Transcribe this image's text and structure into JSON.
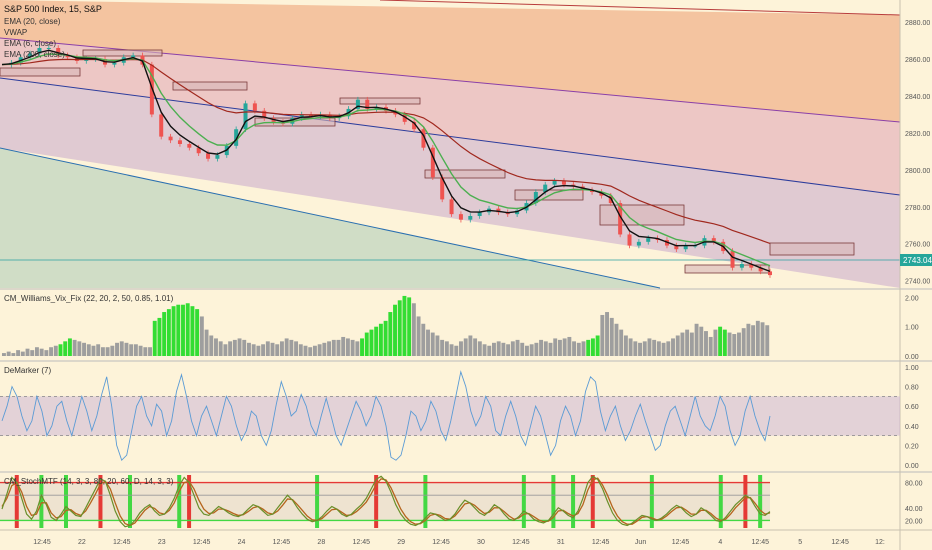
{
  "chart_data": {
    "type": "line",
    "title": "S&P 500 Index, 15, S&P",
    "price_badge": "2743.04",
    "overlays": [
      "EMA (20, close)",
      "VWAP",
      "EMA (6, close)",
      "EMA (200, close)"
    ],
    "price_ticks": [
      "2880.00",
      "2860.00",
      "2840.00",
      "2820.00",
      "2800.00",
      "2780.00",
      "2760.00",
      "2740.00"
    ],
    "price_ylim": [
      2736,
      2892
    ],
    "x_ticks": [
      "12:45",
      "22",
      "12:45",
      "23",
      "12:45",
      "24",
      "12:45",
      "28",
      "12:45",
      "29",
      "12:45",
      "30",
      "12:45",
      "31",
      "12:45",
      "Jun",
      "12:45",
      "4",
      "12:45",
      "5",
      "12:45",
      "12:"
    ],
    "price_series": [
      2857,
      2858,
      2861,
      2863,
      2866,
      2866,
      2862,
      2861,
      2859,
      2860,
      2860,
      2857,
      2858,
      2861,
      2862,
      2857,
      2830,
      2818,
      2816,
      2814,
      2812,
      2809,
      2806,
      2808,
      2813,
      2822,
      2836,
      2832,
      2828,
      2826,
      2825,
      2828,
      2830,
      2829,
      2830,
      2828,
      2829,
      2833,
      2838,
      2833,
      2834,
      2832,
      2830,
      2826,
      2822,
      2812,
      2796,
      2784,
      2776,
      2773,
      2775,
      2777,
      2779,
      2777,
      2776,
      2778,
      2782,
      2788,
      2792,
      2794,
      2792,
      2791,
      2789,
      2788,
      2786,
      2782,
      2765,
      2759,
      2761,
      2763,
      2762,
      2759,
      2757,
      2759,
      2759,
      2763,
      2761,
      2756,
      2747,
      2749,
      2747,
      2745,
      2743
    ],
    "panels": [
      {
        "name": "CM_Williams_Vix_Fix (22, 20, 2, 50, 0.85, 1.01)",
        "ticks": [
          "2.00",
          "1.00",
          "0.00"
        ],
        "ylim": [
          0,
          2.15
        ],
        "values": [
          0.1,
          0.15,
          0.1,
          0.2,
          0.15,
          0.25,
          0.2,
          0.3,
          0.25,
          0.2,
          0.3,
          0.35,
          0.4,
          0.5,
          0.6,
          0.55,
          0.5,
          0.45,
          0.4,
          0.35,
          0.4,
          0.3,
          0.3,
          0.35,
          0.45,
          0.5,
          0.45,
          0.4,
          0.4,
          0.35,
          0.3,
          0.3,
          1.2,
          1.3,
          1.5,
          1.6,
          1.7,
          1.75,
          1.75,
          1.8,
          1.7,
          1.6,
          1.35,
          0.9,
          0.7,
          0.6,
          0.5,
          0.4,
          0.5,
          0.55,
          0.6,
          0.55,
          0.45,
          0.4,
          0.35,
          0.4,
          0.5,
          0.45,
          0.4,
          0.5,
          0.6,
          0.55,
          0.5,
          0.4,
          0.35,
          0.3,
          0.35,
          0.4,
          0.45,
          0.5,
          0.55,
          0.55,
          0.65,
          0.6,
          0.55,
          0.5,
          0.6,
          0.8,
          0.9,
          1.0,
          1.1,
          1.2,
          1.5,
          1.75,
          1.9,
          2.05,
          2.0,
          1.8,
          1.35,
          1.1,
          0.9,
          0.8,
          0.7,
          0.55,
          0.5,
          0.4,
          0.35,
          0.5,
          0.6,
          0.7,
          0.6,
          0.5,
          0.4,
          0.35,
          0.45,
          0.5,
          0.45,
          0.4,
          0.5,
          0.55,
          0.45,
          0.35,
          0.4,
          0.45,
          0.55,
          0.5,
          0.45,
          0.6,
          0.55,
          0.6,
          0.65,
          0.5,
          0.45,
          0.5,
          0.55,
          0.6,
          0.7,
          1.4,
          1.5,
          1.3,
          1.1,
          0.9,
          0.7,
          0.6,
          0.5,
          0.45,
          0.5,
          0.6,
          0.55,
          0.5,
          0.45,
          0.5,
          0.6,
          0.7,
          0.8,
          0.9,
          0.8,
          1.1,
          1.0,
          0.85,
          0.65,
          0.9,
          1.0,
          0.9,
          0.8,
          0.75,
          0.8,
          0.95,
          1.1,
          1.05,
          1.2,
          1.15,
          1.05
        ],
        "highlights": [
          [
            12,
            14
          ],
          [
            32,
            41
          ],
          [
            76,
            86
          ],
          [
            124,
            126
          ],
          [
            152,
            153
          ]
        ]
      },
      {
        "name": "DeMarker (7)",
        "ticks": [
          "1.00",
          "0.80",
          "0.60",
          "0.40",
          "0.20",
          "0.00"
        ],
        "ylim": [
          -0.03,
          1.03
        ],
        "band": [
          0.3,
          0.7
        ],
        "values": [
          0.45,
          0.6,
          0.8,
          0.7,
          0.5,
          0.35,
          0.45,
          0.7,
          0.55,
          0.3,
          0.4,
          0.6,
          0.65,
          0.45,
          0.3,
          0.5,
          0.7,
          0.55,
          0.35,
          0.5,
          0.72,
          0.9,
          0.6,
          0.2,
          0.05,
          0.1,
          0.35,
          0.6,
          0.7,
          0.5,
          0.4,
          0.62,
          0.55,
          0.3,
          0.45,
          0.75,
          0.92,
          0.7,
          0.45,
          0.3,
          0.5,
          0.6,
          0.45,
          0.3,
          0.5,
          0.7,
          0.6,
          0.4,
          0.25,
          0.35,
          0.55,
          0.5,
          0.3,
          0.2,
          0.35,
          0.62,
          0.85,
          0.7,
          0.5,
          0.55,
          0.72,
          0.6,
          0.4,
          0.3,
          0.5,
          0.68,
          0.5,
          0.3,
          0.2,
          0.35,
          0.5,
          0.65,
          0.55,
          0.4,
          0.5,
          0.7,
          0.6,
          0.4,
          0.08,
          0.05,
          0.1,
          0.3,
          0.55,
          0.5,
          0.35,
          0.45,
          0.65,
          0.55,
          0.35,
          0.25,
          0.45,
          0.7,
          0.95,
          0.8,
          0.55,
          0.4,
          0.5,
          0.7,
          0.6,
          0.35,
          0.3,
          0.5,
          0.65,
          0.5,
          0.3,
          0.2,
          0.4,
          0.6,
          0.5,
          0.3,
          0.1,
          0.2,
          0.45,
          0.6,
          0.5,
          0.3,
          0.45,
          0.75,
          0.9,
          0.85,
          0.55,
          0.35,
          0.5,
          0.6,
          0.4,
          0.25,
          0.35,
          0.5,
          0.62,
          0.45,
          0.3,
          0.15,
          0.2,
          0.4,
          0.55,
          0.6,
          0.45,
          0.3,
          0.5,
          0.7,
          0.5,
          0.4,
          0.35,
          0.5,
          0.7,
          0.6,
          0.35,
          0.2,
          0.3,
          0.55,
          0.7,
          0.5,
          0.35,
          0.25,
          0.5
        ]
      },
      {
        "name": "CM_StochMTF (14, 3, 3, 80, 20, 60, D, 14, 3, 3)",
        "ticks": [
          "80.00",
          "40.00",
          "20.00"
        ],
        "ylim": [
          8,
          92
        ],
        "lines": [
          80,
          60,
          20
        ],
        "k_values": [
          38,
          62,
          88,
          80,
          55,
          30,
          22,
          35,
          60,
          45,
          25,
          20,
          30,
          42,
          35,
          28,
          26,
          40,
          55,
          70,
          86,
          82,
          60,
          35,
          18,
          10,
          12,
          20,
          32,
          40,
          45,
          35,
          28,
          30,
          40,
          55,
          75,
          88,
          80,
          60,
          40,
          30,
          28,
          35,
          42,
          38,
          32,
          28,
          26,
          30,
          38,
          45,
          42,
          35,
          28,
          30,
          40,
          50,
          60,
          52,
          40,
          30,
          22,
          18,
          20,
          26,
          35,
          42,
          38,
          30,
          26,
          30,
          38,
          45,
          55,
          70,
          85,
          90,
          82,
          65,
          45,
          30,
          20,
          14,
          12,
          16,
          24,
          32,
          30,
          25,
          20,
          22,
          30,
          42,
          52,
          48,
          40,
          32,
          28,
          35,
          45,
          40,
          30,
          22,
          20,
          26,
          35,
          30,
          22,
          18,
          16,
          20,
          30,
          40,
          35,
          28,
          24,
          35,
          55,
          80,
          90,
          85,
          70,
          50,
          32,
          20,
          14,
          12,
          16,
          22,
          28,
          26,
          22,
          20,
          24,
          30,
          38,
          44,
          40,
          32,
          26,
          30,
          40,
          35,
          28,
          20,
          18,
          25,
          35,
          45,
          52,
          60,
          55,
          42,
          30,
          28,
          34
        ],
        "d_values": [
          42,
          55,
          75,
          80,
          65,
          42,
          28,
          30,
          48,
          48,
          32,
          24,
          26,
          36,
          37,
          31,
          28,
          35,
          48,
          62,
          78,
          82,
          70,
          48,
          27,
          15,
          12,
          16,
          26,
          36,
          42,
          39,
          32,
          30,
          36,
          48,
          66,
          80,
          82,
          70,
          52,
          38,
          31,
          32,
          38,
          38,
          35,
          31,
          28,
          29,
          34,
          40,
          42,
          38,
          32,
          30,
          35,
          44,
          54,
          53,
          45,
          36,
          27,
          21,
          20,
          23,
          30,
          37,
          38,
          33,
          28,
          29,
          34,
          41,
          49,
          62,
          77,
          86,
          84,
          72,
          55,
          38,
          26,
          18,
          14,
          15,
          20,
          28,
          30,
          28,
          23,
          22,
          27,
          36,
          46,
          48,
          44,
          37,
          31,
          33,
          40,
          40,
          34,
          27,
          22,
          24,
          30,
          31,
          26,
          21,
          18,
          19,
          25,
          35,
          36,
          31,
          27,
          31,
          45,
          68,
          84,
          87,
          76,
          60,
          41,
          27,
          18,
          14,
          14,
          19,
          25,
          26,
          24,
          21,
          22,
          27,
          34,
          40,
          41,
          36,
          30,
          30,
          36,
          36,
          31,
          24,
          20,
          22,
          30,
          40,
          48,
          56,
          56,
          47,
          36,
          30,
          32
        ],
        "signals_red": [
          3,
          20,
          38,
          76,
          120,
          151
        ],
        "signals_green": [
          8,
          13,
          26,
          36,
          64,
          86,
          106,
          112,
          116,
          132,
          146,
          154
        ]
      }
    ]
  }
}
